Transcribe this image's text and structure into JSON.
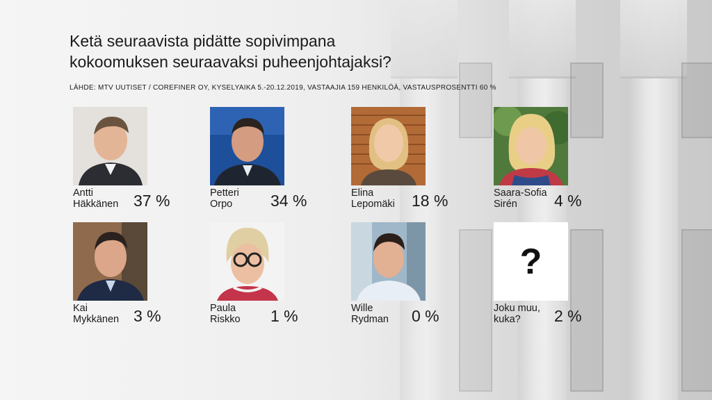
{
  "title": {
    "line1": "Ketä seuraavista pidätte sopivimpana",
    "line2": "kokoomuksen seuraavaksi puheenjohtajaksi?"
  },
  "source": "LÄHDE: MTV UUTISET / COREFINER OY, KYSELYAIKA 5.-20.12.2019, VASTAAJIA 159 HENKILÖÄ, VASTAUSPROSENTTI 60 %",
  "candidates": [
    {
      "name_line1": "Antti",
      "name_line2": "Häkkänen",
      "value_label": "37 %"
    },
    {
      "name_line1": "Petteri",
      "name_line2": "Orpo",
      "value_label": "34 %"
    },
    {
      "name_line1": "Elina",
      "name_line2": "Lepomäki",
      "value_label": "18 %"
    },
    {
      "name_line1": "Saara-Sofia",
      "name_line2": "Sirén",
      "value_label": "4 %"
    },
    {
      "name_line1": "Kai",
      "name_line2": "Mykkänen",
      "value_label": "3 %"
    },
    {
      "name_line1": "Paula",
      "name_line2": "Riskko",
      "value_label": "1 %"
    },
    {
      "name_line1": "Wille",
      "name_line2": "Rydman",
      "value_label": "0 %"
    },
    {
      "name_line1": "Joku muu,",
      "name_line2": "kuka?",
      "value_label": "2 %"
    }
  ],
  "unknown_symbol": "?",
  "chart_data": {
    "type": "table",
    "title": "Ketä seuraavista pidätte sopivimpana kokoomuksen seuraavaksi puheenjohtajaksi?",
    "categories": [
      "Antti Häkkänen",
      "Petteri Orpo",
      "Elina Lepomäki",
      "Saara-Sofia Sirén",
      "Kai Mykkänen",
      "Paula Riskko",
      "Wille Rydman",
      "Joku muu, kuka?"
    ],
    "values": [
      37,
      34,
      18,
      4,
      3,
      1,
      0,
      2
    ],
    "unit": "%"
  },
  "colors": {
    "text": "#1a1a1a",
    "background": "#efefef",
    "unknown_box": "#ffffff"
  }
}
